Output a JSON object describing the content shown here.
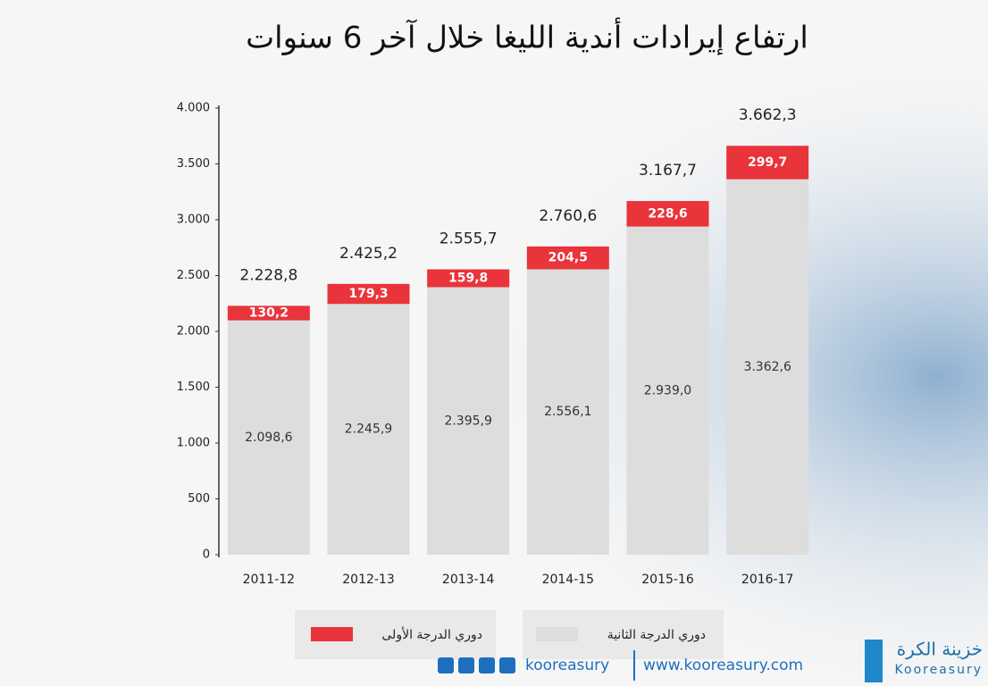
{
  "chart_data": {
    "type": "stacked_bar",
    "title": "ارتفاع إيرادات أندية الليغا خلال آخر 6 سنوات",
    "categories": [
      "2011-12",
      "2012-13",
      "2013-14",
      "2014-15",
      "2015-16",
      "2016-17"
    ],
    "series": [
      {
        "name": "دوري الدرجة الثانية",
        "color": "#dddddd",
        "values": [
          2098.6,
          2245.9,
          2395.9,
          2556.1,
          2939.0,
          3362.6
        ],
        "value_labels": [
          "2.098,6",
          "2.245,9",
          "2.395,9",
          "2.556,1",
          "2.939,0",
          "3.362,6"
        ]
      },
      {
        "name": "دوري الدرجة الأولى",
        "color": "#e8343a",
        "values": [
          130.2,
          179.3,
          159.8,
          204.5,
          228.6,
          299.7
        ],
        "value_labels": [
          "130,2",
          "179,3",
          "159,8",
          "204,5",
          "228,6",
          "299,7"
        ]
      }
    ],
    "totals": [
      2228.8,
      2425.2,
      2555.7,
      2760.6,
      3167.7,
      3662.3
    ],
    "total_labels": [
      "2.228,8",
      "2.425,2",
      "2.555,7",
      "2.760,6",
      "3.167,7",
      "3.662,3"
    ],
    "ylim": [
      0,
      4000
    ],
    "yticks": [
      0,
      500,
      {
        "value": 1000,
        "label": "1.000"
      },
      {
        "value": 1500,
        "label": "1.500"
      },
      {
        "value": 2000,
        "label": "2.000"
      },
      {
        "value": 2500,
        "label": "2.500"
      },
      {
        "value": 3000,
        "label": "3.000"
      },
      {
        "value": 3500,
        "label": "3.500"
      },
      {
        "value": 4000,
        "label": "4.000"
      }
    ],
    "grid": false
  },
  "footer": {
    "handle": "kooreasury",
    "website": "www.kooreasury.com",
    "logo_arabic": "خزينة الكرة",
    "logo_latin": "Kooreasury"
  }
}
